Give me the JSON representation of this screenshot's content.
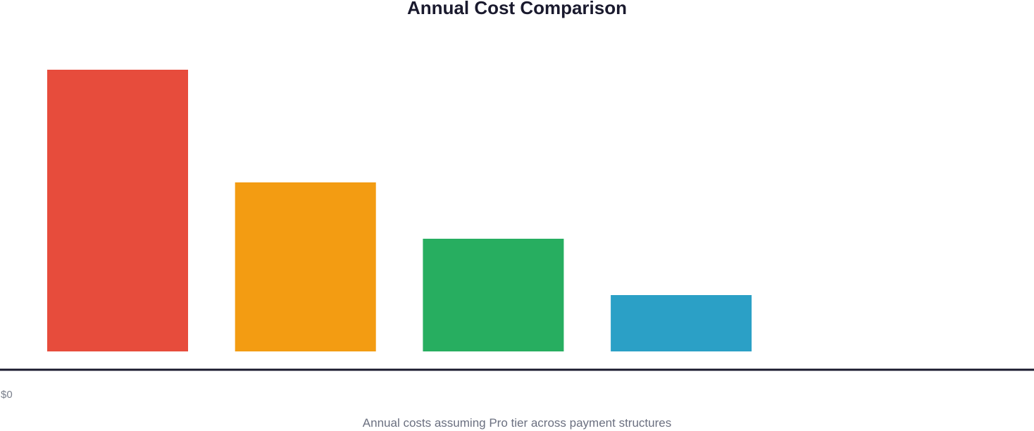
{
  "chart_data": {
    "type": "bar",
    "title": "Annual Cost Comparison",
    "caption": "Annual costs assuming Pro tier across payment structures",
    "y_axis_min_label": "$0",
    "categories": [
      "",
      "",
      "",
      ""
    ],
    "values": [
      5,
      3,
      2,
      1
    ],
    "colors": [
      "#e74c3c",
      "#f39c12",
      "#27ae60",
      "#2ba0c6"
    ],
    "ylim": [
      0,
      5
    ],
    "grid": false,
    "legend": "none"
  }
}
